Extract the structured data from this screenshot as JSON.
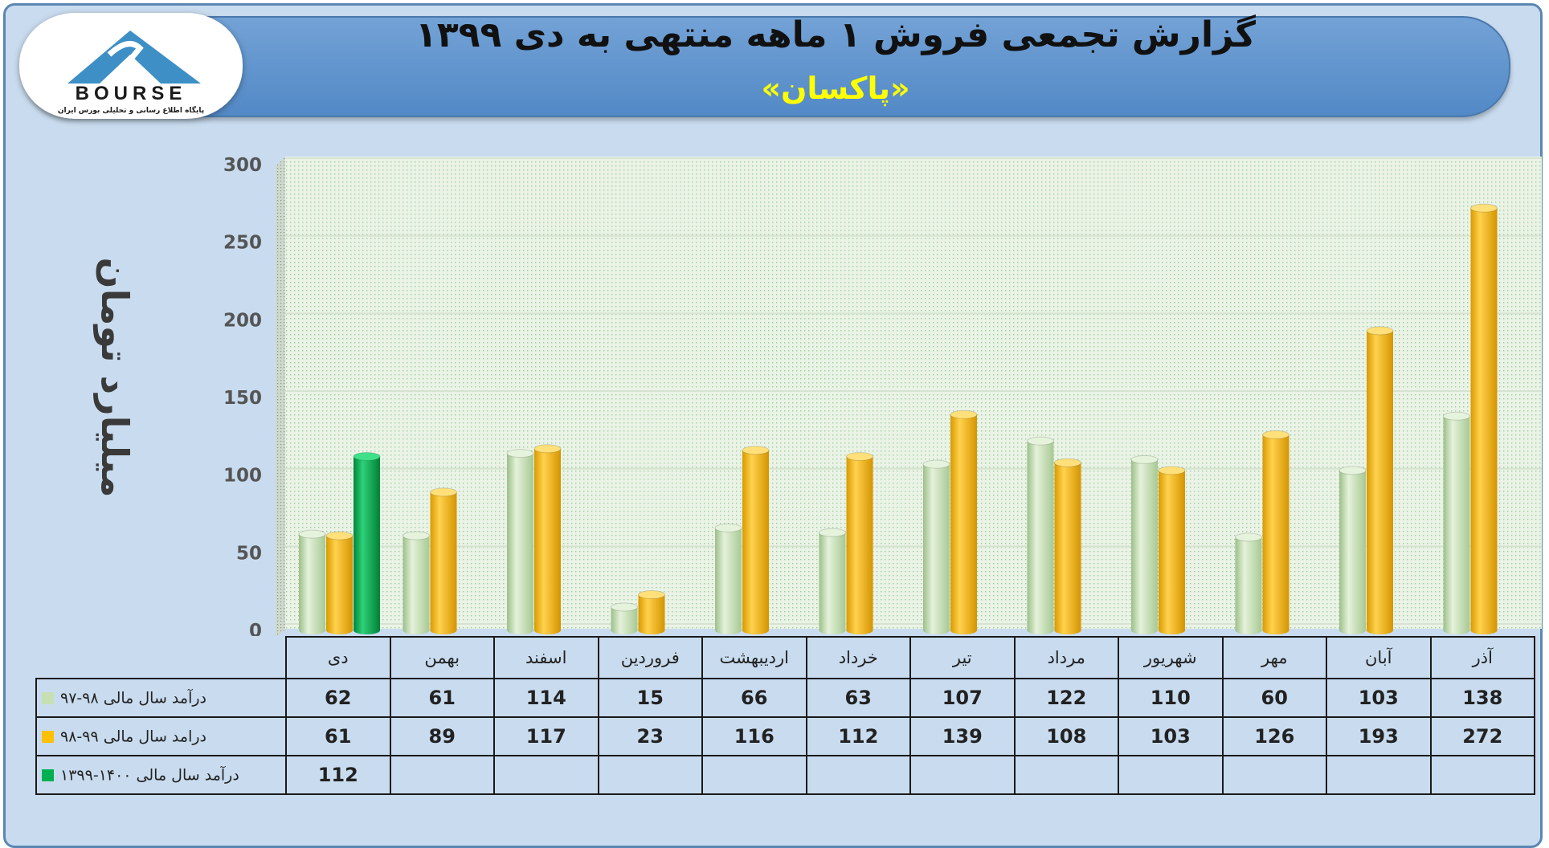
{
  "header": {
    "title": "گزارش تجمعی فروش ۱ ماهه منتهی به دی ۱۳۹۹",
    "subtitle": "«پاکسان»"
  },
  "logo": {
    "text": "BOURSE",
    "tagline": "پایگاه اطلاع رسانی و تحلیلی بورس ایران"
  },
  "colors": {
    "series1": "#c6e0b4",
    "series2": "#ffc000",
    "series3": "#00b050",
    "background": "#c9dcef",
    "header": "#5b8fca",
    "title_text": "#111111",
    "subtitle_text": "#ffff00"
  },
  "chart_data": {
    "type": "bar",
    "ylabel": "میلیارد تومان",
    "xlabel": "",
    "ylim": [
      0,
      300
    ],
    "yticks": [
      0,
      50,
      100,
      150,
      200,
      250,
      300
    ],
    "grid": true,
    "categories": [
      "دی",
      "بهمن",
      "اسفند",
      "فروردین",
      "اردیبهشت",
      "خرداد",
      "تیر",
      "مرداد",
      "شهریور",
      "مهر",
      "آبان",
      "آذر"
    ],
    "series": [
      {
        "name": "درآمد سال مالی ۹۸-۹۷",
        "color": "#c6e0b4",
        "values": [
          62,
          61,
          114,
          15,
          66,
          63,
          107,
          122,
          110,
          60,
          103,
          138
        ]
      },
      {
        "name": "درامد سال مالی ۹۹-۹۸",
        "color": "#ffc000",
        "values": [
          61,
          89,
          117,
          23,
          116,
          112,
          139,
          108,
          103,
          126,
          193,
          272
        ]
      },
      {
        "name": "درآمد سال مالی ۱۴۰۰-۱۳۹۹",
        "color": "#00b050",
        "values": [
          112,
          null,
          null,
          null,
          null,
          null,
          null,
          null,
          null,
          null,
          null,
          null
        ]
      }
    ]
  }
}
